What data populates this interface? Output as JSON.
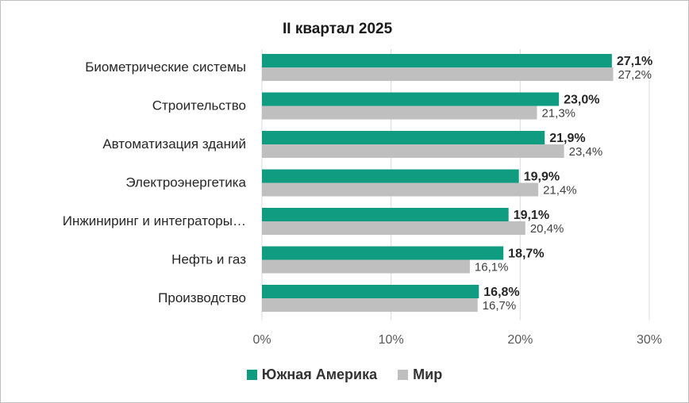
{
  "chart_data": {
    "type": "bar",
    "orientation": "horizontal",
    "title": "II квартал 2025",
    "categories": [
      "Биометрические системы",
      "Строительство",
      "Автоматизация зданий",
      "Электроэнергетика",
      "Инжиниринг и интеграторы…",
      "Нефть и газ",
      "Производство"
    ],
    "series": [
      {
        "name": "Южная Америка",
        "color": "#0f9c80",
        "values": [
          27.1,
          23.0,
          21.9,
          19.9,
          19.1,
          18.7,
          16.8
        ],
        "labels": [
          "27,1%",
          "23,0%",
          "21,9%",
          "19,9%",
          "19,1%",
          "18,7%",
          "16,8%"
        ]
      },
      {
        "name": "Мир",
        "color": "#bfbfbf",
        "values": [
          27.2,
          21.3,
          23.4,
          21.4,
          20.4,
          16.1,
          16.7
        ],
        "labels": [
          "27,2%",
          "21,3%",
          "23,4%",
          "21,4%",
          "20,4%",
          "16,1%",
          "16,7%"
        ]
      }
    ],
    "xlim": [
      0,
      30
    ],
    "xticks": [
      0,
      10,
      20,
      30
    ],
    "xtick_labels": [
      "0%",
      "10%",
      "20%",
      "30%"
    ],
    "grid": true,
    "legend_position": "bottom"
  }
}
